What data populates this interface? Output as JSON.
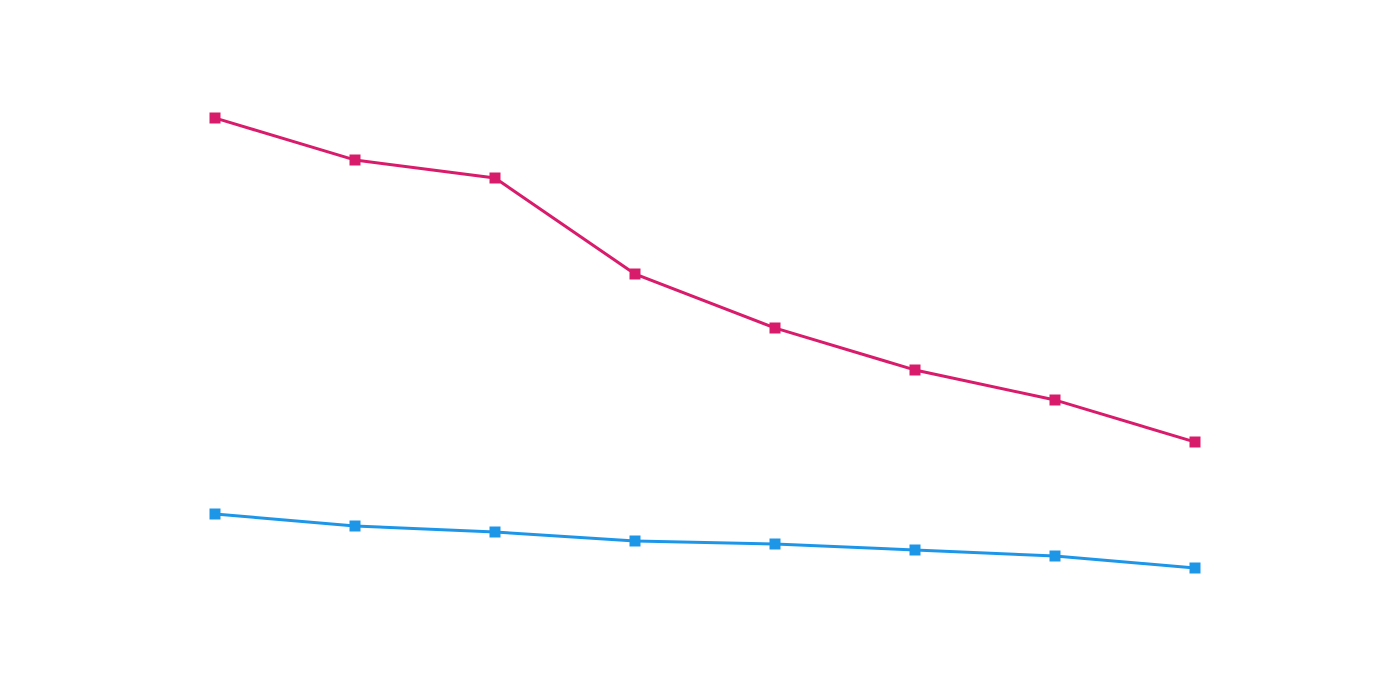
{
  "chart_data": {
    "type": "line",
    "categories": [
      null,
      null,
      null,
      null,
      null,
      null,
      null,
      null
    ],
    "series": [
      {
        "color": "#d81b6a",
        "values": [
          87,
          80,
          77,
          61,
          52,
          45,
          40,
          33
        ]
      },
      {
        "color": "#1e96e8",
        "values": [
          21,
          19,
          18,
          16.5,
          16,
          15,
          14,
          12
        ]
      }
    ],
    "ylim": [
      0,
      100
    ]
  }
}
